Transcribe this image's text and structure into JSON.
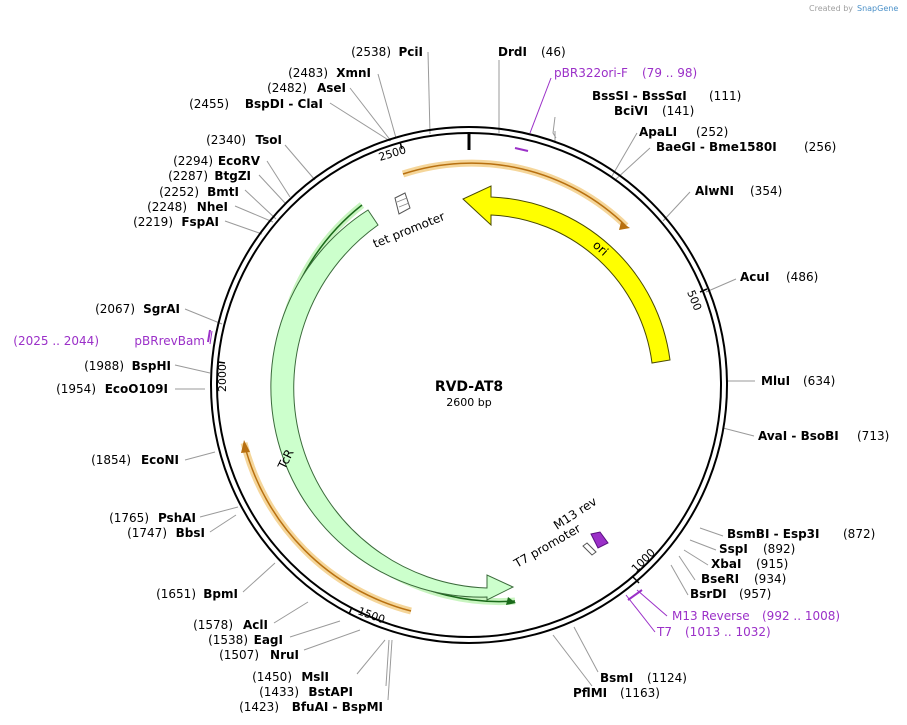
{
  "credit": {
    "prefix": "Created by",
    "brand": "SnapGene"
  },
  "plasmid": {
    "name": "RVD-AT8",
    "length_label": "2600 bp",
    "length": 2600
  },
  "ticks": [
    "500",
    "1000",
    "1500",
    "2000",
    "2500"
  ],
  "features": [
    {
      "id": "ori",
      "label": "ori",
      "color": "#ffff00"
    },
    {
      "id": "tcr",
      "label": "TcR",
      "color": "#ccffcc"
    },
    {
      "id": "tet",
      "label": "tet promoter"
    },
    {
      "id": "t7",
      "label": "T7 promoter"
    },
    {
      "id": "m13",
      "label": "M13 rev"
    }
  ],
  "sites": [
    {
      "name": "DrdI",
      "pos": "(46)"
    },
    {
      "name": "BssSI",
      "alias": "BssSαI",
      "pos": "(111)"
    },
    {
      "name": "BciVI",
      "pos": "(141)"
    },
    {
      "name": "ApaLI",
      "pos": "(252)"
    },
    {
      "name": "BaeGI",
      "alias": "Bme1580I",
      "pos": "(256)"
    },
    {
      "name": "AlwNI",
      "pos": "(354)"
    },
    {
      "name": "AcuI",
      "pos": "(486)"
    },
    {
      "name": "MluI",
      "pos": "(634)"
    },
    {
      "name": "AvaI",
      "alias": "BsoBI",
      "pos": "(713)"
    },
    {
      "name": "BsmBI",
      "alias": "Esp3I",
      "pos": "(872)"
    },
    {
      "name": "SspI",
      "pos": "(892)"
    },
    {
      "name": "XbaI",
      "pos": "(915)"
    },
    {
      "name": "BseRI",
      "pos": "(934)"
    },
    {
      "name": "BsrDI",
      "pos": "(957)"
    },
    {
      "name": "BsmI",
      "pos": "(1124)"
    },
    {
      "name": "PflMI",
      "pos": "(1163)"
    },
    {
      "name": "BfuAI",
      "alias": "BspMI",
      "pos": "(1423)"
    },
    {
      "name": "BstAPI",
      "pos": "(1433)"
    },
    {
      "name": "MslI",
      "pos": "(1450)"
    },
    {
      "name": "NruI",
      "pos": "(1507)"
    },
    {
      "name": "EagI",
      "pos": "(1538)"
    },
    {
      "name": "AclI",
      "pos": "(1578)"
    },
    {
      "name": "BpmI",
      "pos": "(1651)"
    },
    {
      "name": "BbsI",
      "pos": "(1747)"
    },
    {
      "name": "PshAI",
      "pos": "(1765)"
    },
    {
      "name": "EcoNI",
      "pos": "(1854)"
    },
    {
      "name": "EcoO109I",
      "pos": "(1954)"
    },
    {
      "name": "BspHI",
      "pos": "(1988)"
    },
    {
      "name": "SgrAI",
      "pos": "(2067)"
    },
    {
      "name": "FspAI",
      "pos": "(2219)"
    },
    {
      "name": "NheI",
      "pos": "(2248)"
    },
    {
      "name": "BmtI",
      "pos": "(2252)"
    },
    {
      "name": "BtgZI",
      "pos": "(2287)"
    },
    {
      "name": "EcoRV",
      "pos": "(2294)"
    },
    {
      "name": "TsoI",
      "pos": "(2340)"
    },
    {
      "name": "BspDI",
      "alias": "ClaI",
      "pos": "(2455)"
    },
    {
      "name": "AseI",
      "pos": "(2482)"
    },
    {
      "name": "XmnI",
      "pos": "(2483)"
    },
    {
      "name": "PciI",
      "pos": "(2538)"
    }
  ],
  "primers": [
    {
      "name": "pBR322ori-F",
      "range": "(79 .. 98)"
    },
    {
      "name": "M13 Reverse",
      "range": "(992 .. 1008)"
    },
    {
      "name": "T7",
      "range": "(1013 .. 1032)"
    },
    {
      "name": "pBRrevBam",
      "range": "(2025 .. 2044)"
    }
  ]
}
